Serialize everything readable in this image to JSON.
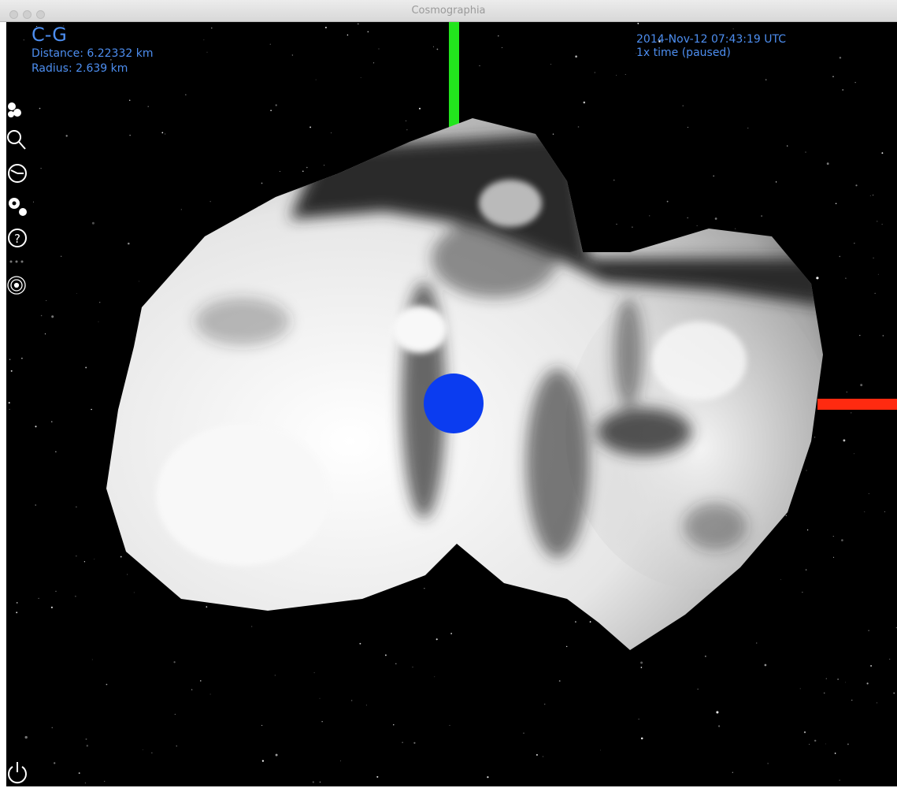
{
  "window": {
    "title": "Cosmographia"
  },
  "hud": {
    "object_name": "C-G",
    "distance": "Distance: 6.22332 km",
    "radius": "Radius: 2.639 km",
    "time": "2014-Nov-12 07:43:19 UTC",
    "time_rate": "1x time (paused)"
  }
}
